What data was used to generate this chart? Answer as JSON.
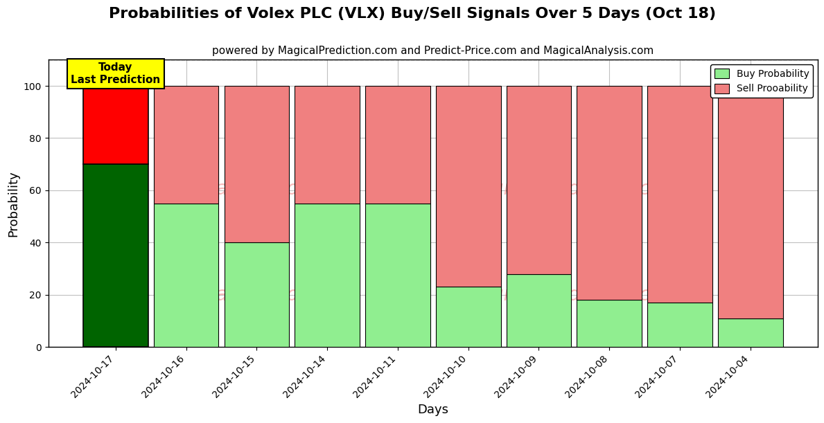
{
  "title": "Probabilities of Volex PLC (VLX) Buy/Sell Signals Over 5 Days (Oct 18)",
  "subtitle": "powered by MagicalPrediction.com and Predict-Price.com and MagicalAnalysis.com",
  "xlabel": "Days",
  "ylabel": "Probability",
  "categories": [
    "2024-10-17",
    "2024-10-16",
    "2024-10-15",
    "2024-10-14",
    "2024-10-11",
    "2024-10-10",
    "2024-10-09",
    "2024-10-08",
    "2024-10-07",
    "2024-10-04"
  ],
  "buy_values": [
    70,
    55,
    40,
    55,
    55,
    23,
    28,
    18,
    17,
    11
  ],
  "sell_values": [
    30,
    45,
    60,
    45,
    45,
    77,
    72,
    82,
    83,
    89
  ],
  "today_buy_color": "#006400",
  "today_sell_color": "#FF0000",
  "buy_color": "#90EE90",
  "sell_color": "#F08080",
  "today_annotation_text": "Today\nLast Prediction",
  "today_annotation_bg": "#FFFF00",
  "legend_buy_label": "Buy Probability",
  "legend_sell_label": "Sell Prooability",
  "ylim": [
    0,
    110
  ],
  "yticks": [
    0,
    20,
    40,
    60,
    80,
    100
  ],
  "dashed_line_y": 110,
  "title_fontsize": 16,
  "subtitle_fontsize": 11,
  "watermark_texts": [
    "calAnalysis.com",
    "MagicalPrediction.com",
    "calAnalysis.com",
    "MagicalPrediction.com"
  ],
  "background_color": "#ffffff",
  "grid_color": "#c0c0c0"
}
